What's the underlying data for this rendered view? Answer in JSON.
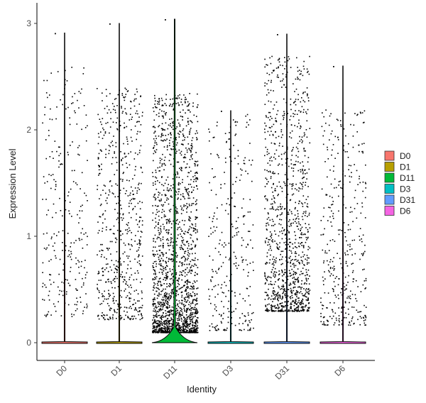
{
  "chart_data": {
    "type": "violin",
    "xlabel": "Identity",
    "ylabel": "Expression Level",
    "ylim": [
      -0.15,
      3.07
    ],
    "yticks": [
      0,
      1,
      2,
      3
    ],
    "categories": [
      "D0",
      "D1",
      "D11",
      "D3",
      "D31",
      "D6"
    ],
    "colors": [
      "#F8766D",
      "#B79F00",
      "#00BA38",
      "#00BFC4",
      "#619CFF",
      "#F564E3"
    ],
    "legend": {
      "position": "right",
      "entries": [
        "D0",
        "D1",
        "D11",
        "D3",
        "D31",
        "D6"
      ]
    },
    "groups": [
      {
        "name": "D0",
        "max": 2.91,
        "n_points": 260,
        "lower": 0.25,
        "upper": 2.6,
        "skew": 1.3
      },
      {
        "name": "D1",
        "max": 3.0,
        "n_points": 600,
        "lower": 0.22,
        "upper": 2.4,
        "skew": 1.4
      },
      {
        "name": "D11",
        "max": 3.04,
        "n_points": 1900,
        "lower": 0.1,
        "upper": 2.35,
        "skew": 2.3
      },
      {
        "name": "D3",
        "max": 2.18,
        "n_points": 280,
        "lower": 0.12,
        "upper": 2.15,
        "skew": 1.6
      },
      {
        "name": "D31",
        "max": 2.9,
        "n_points": 1100,
        "lower": 0.3,
        "upper": 2.7,
        "skew": 1.8
      },
      {
        "name": "D6",
        "max": 2.6,
        "n_points": 380,
        "lower": 0.17,
        "upper": 2.2,
        "skew": 1.6
      }
    ]
  }
}
